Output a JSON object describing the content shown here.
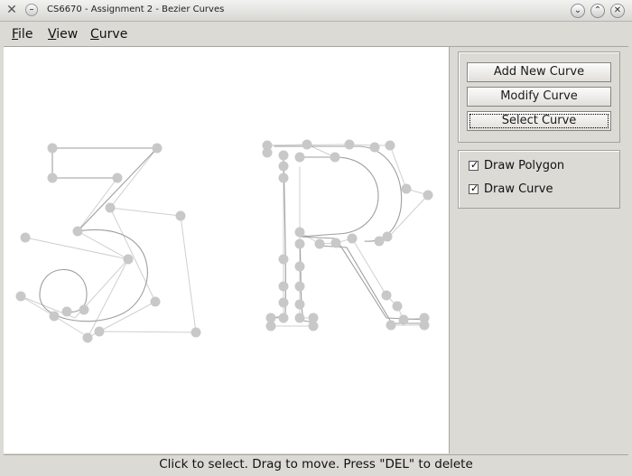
{
  "window": {
    "title": "CS6670 - Assignment 2 - Bezier Curves",
    "app_icon": "x-app-icon",
    "controls": [
      "minimize-icon",
      "maximize-icon",
      "close-icon"
    ]
  },
  "menu": {
    "file": "File",
    "view": "View",
    "curve": "Curve"
  },
  "panel": {
    "add_new_curve": "Add New Curve",
    "modify_curve": "Modify Curve",
    "select_curve": "Select Curve",
    "draw_polygon": {
      "label": "Draw Polygon",
      "checked": true
    },
    "draw_curve": {
      "label": "Draw Curve",
      "checked": true
    }
  },
  "status": {
    "text": "Click to select. Drag to move. Press \"DEL\" to delete"
  },
  "colors": {
    "control_point": "#c8c8c8",
    "polygon": "#c9c9c9",
    "curve": "#9e9e9e"
  }
}
